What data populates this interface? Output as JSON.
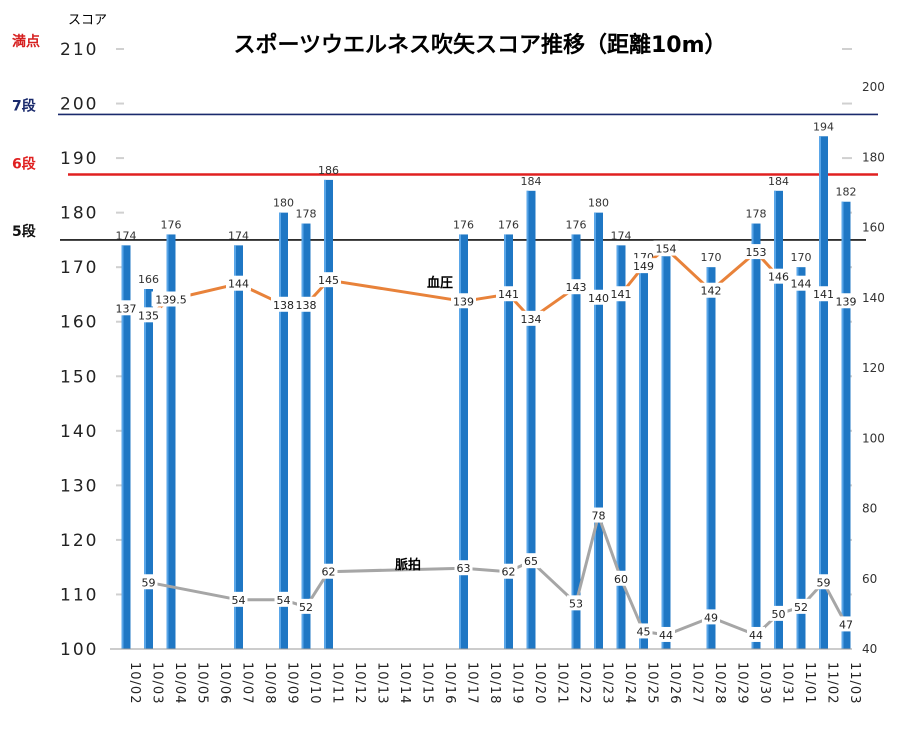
{
  "chart_data": {
    "type": "bar",
    "title": "スポーツウエルネス吹矢スコア推移（距離10m）",
    "ylabel": "スコア",
    "ylim": [
      100,
      210
    ],
    "yticks": [
      100,
      110,
      120,
      130,
      140,
      150,
      160,
      170,
      180,
      190,
      200,
      210
    ],
    "y2lim": [
      40,
      200
    ],
    "y2ticks": [
      40,
      60,
      80,
      100,
      120,
      140,
      160,
      180,
      200
    ],
    "categories": [
      "10/02",
      "10/03",
      "10/04",
      "10/05",
      "10/06",
      "10/07",
      "10/08",
      "10/09",
      "10/10",
      "10/11",
      "10/12",
      "10/13",
      "10/14",
      "10/15",
      "10/16",
      "10/17",
      "10/18",
      "10/19",
      "10/20",
      "10/21",
      "10/22",
      "10/23",
      "10/24",
      "10/25",
      "10/26",
      "10/27",
      "10/28",
      "10/29",
      "10/30",
      "10/31",
      "11/01",
      "11/02",
      "11/03"
    ],
    "series": [
      {
        "name": "",
        "type": "bar",
        "axis": "left",
        "color": "#1f77c4",
        "values": [
          174,
          166,
          176,
          null,
          null,
          174,
          null,
          180,
          178,
          186,
          null,
          null,
          null,
          null,
          null,
          176,
          null,
          176,
          184,
          null,
          176,
          180,
          174,
          170,
          172,
          null,
          170,
          null,
          178,
          184,
          170,
          194,
          182
        ]
      },
      {
        "name": "血圧",
        "type": "line",
        "axis": "right",
        "color": "#e8823a",
        "values": [
          137,
          135,
          139.5,
          null,
          null,
          144,
          null,
          138,
          138,
          145,
          null,
          null,
          null,
          null,
          null,
          139,
          null,
          141,
          134,
          null,
          143,
          140,
          141,
          149,
          154,
          null,
          142,
          null,
          153,
          146,
          144,
          141,
          139
        ]
      },
      {
        "name": "脈拍",
        "type": "line",
        "axis": "right",
        "color": "#a6a6a6",
        "values": [
          null,
          59,
          null,
          null,
          null,
          54,
          null,
          54,
          52,
          62,
          null,
          null,
          null,
          null,
          null,
          63,
          null,
          62,
          65,
          null,
          53,
          78,
          60,
          45,
          44,
          null,
          49,
          null,
          44,
          50,
          52,
          59,
          47
        ]
      }
    ],
    "reference_lines": [
      {
        "label": "満点",
        "value": 210,
        "color": "#d62020"
      },
      {
        "label": "7段",
        "value": 198,
        "color": "#1a2a6c"
      },
      {
        "label": "6段",
        "value": 187,
        "color": "#e02020"
      },
      {
        "label": "5段",
        "value": 175,
        "color": "#111111"
      }
    ],
    "grid": false,
    "legend": "none"
  }
}
